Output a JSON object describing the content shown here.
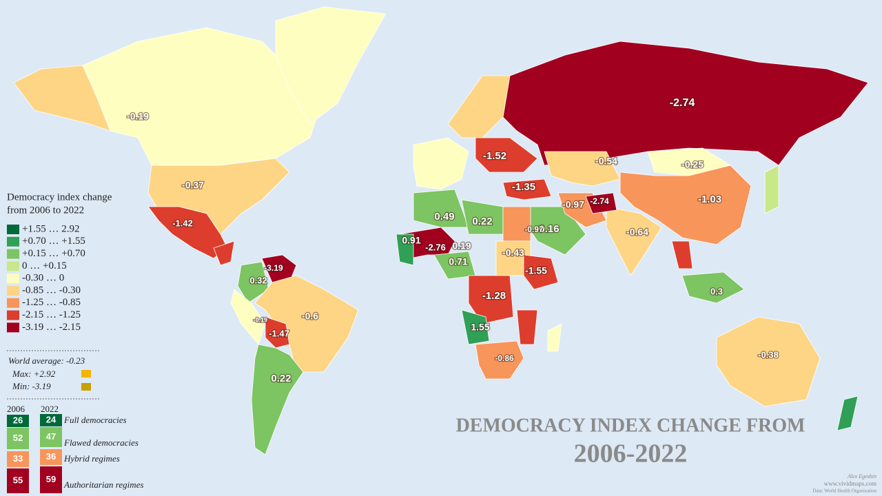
{
  "map_title": [
    "DEMOCRACY INDEX CHANGE FROM",
    "2006-2022"
  ],
  "legend": {
    "title": [
      "Democracy index change",
      "from 2006 to 2022"
    ],
    "classes": [
      {
        "label": "+1.55 … 2.92",
        "color": "#00693a"
      },
      {
        "label": "+0.70 … +1.55",
        "color": "#2fa055"
      },
      {
        "label": "+0.15 … +0.70",
        "color": "#7dc462"
      },
      {
        "label": "0 … +0.15",
        "color": "#c8e88a"
      },
      {
        "label": "-0.30 … 0",
        "color": "#fefec0"
      },
      {
        "label": "-0.85 … -0.30",
        "color": "#fdd585"
      },
      {
        "label": "-1.25 … -0.85",
        "color": "#f8955a"
      },
      {
        "label": "-2.15 … -1.25",
        "color": "#dd3d2d"
      },
      {
        "label": "-3.19 … -2.15",
        "color": "#a1001f"
      }
    ]
  },
  "stats": [
    "World average: -0.23",
    "Max: +2.92",
    "Min: -3.19"
  ],
  "regimes": {
    "years": [
      "2006",
      "2022"
    ],
    "rows": [
      {
        "name": "Full democracies",
        "counts": [
          26,
          24
        ],
        "color": "#00693a"
      },
      {
        "name": "Flawed democracies",
        "counts": [
          52,
          47
        ],
        "color": "#7dc462"
      },
      {
        "name": "Hybrid regimes",
        "counts": [
          33,
          36
        ],
        "color": "#f8955a"
      },
      {
        "name": "Authoritarian regimes",
        "counts": [
          55,
          59
        ],
        "color": "#a1001f"
      }
    ]
  },
  "map_labels": [
    -2.74,
    -0.19,
    -0.37,
    -1.42,
    -3.19,
    0.32,
    -0.6,
    -1.47,
    0.22,
    -0.19,
    -0.54,
    -0.25,
    -1.03,
    -0.64,
    -1.35,
    -1.52,
    0.49,
    0.22,
    0.91,
    -2.76,
    0.19,
    0.71,
    -0.43,
    0.16,
    -0.97,
    -2.74,
    -1.55,
    -1.28,
    1.55,
    -0.86,
    0.3,
    -0.38,
    -0.97
  ],
  "credits": [
    "Alex Egeshin",
    "www.vividmaps.com",
    "Data: World Health Organization"
  ]
}
